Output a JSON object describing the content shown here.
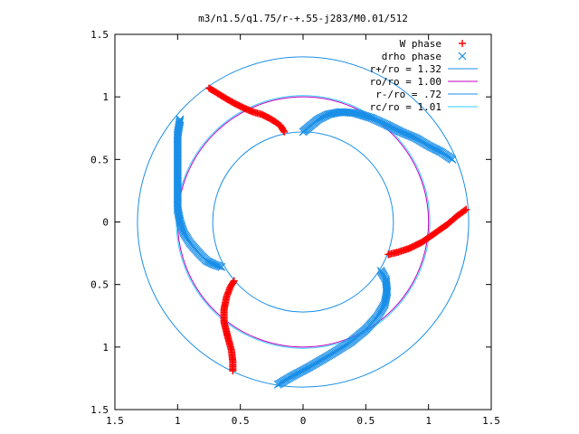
{
  "chart_data": {
    "type": "scatter",
    "title": "m3/n1.5/q1.75/r-+.55-j283/M0.01/512",
    "xlabel": "",
    "ylabel": "",
    "xlim": [
      -1.5,
      1.5
    ],
    "ylim": [
      -1.5,
      1.5
    ],
    "x_ticks": [
      "1.5",
      "1",
      "0.5",
      "0",
      "0.5",
      "1",
      "1.5"
    ],
    "y_ticks": [
      "1.5",
      "1",
      "0.5",
      "0",
      "0.5",
      "1",
      "1.5"
    ],
    "tick_values": [
      -1.5,
      -1,
      -0.5,
      0,
      0.5,
      1,
      1.5
    ],
    "grid": false,
    "legend_position": "top-right",
    "series": [
      {
        "name": "W phase",
        "marker": "+",
        "color": "#ff0000",
        "branches": [
          [
            [
              -0.75,
              1.07
            ],
            [
              -0.7,
              1.04
            ],
            [
              -0.62,
              0.99
            ],
            [
              -0.55,
              0.95
            ],
            [
              -0.47,
              0.91
            ],
            [
              -0.4,
              0.88
            ],
            [
              -0.33,
              0.86
            ],
            [
              -0.27,
              0.83
            ],
            [
              -0.22,
              0.8
            ],
            [
              -0.18,
              0.77
            ],
            [
              -0.15,
              0.72
            ]
          ],
          [
            [
              -0.55,
              -0.47
            ],
            [
              -0.58,
              -0.52
            ],
            [
              -0.61,
              -0.6
            ],
            [
              -0.63,
              -0.7
            ],
            [
              -0.63,
              -0.8
            ],
            [
              -0.6,
              -0.92
            ],
            [
              -0.57,
              -1.03
            ],
            [
              -0.56,
              -1.12
            ],
            [
              -0.56,
              -1.19
            ]
          ],
          [
            [
              0.68,
              -0.26
            ],
            [
              0.76,
              -0.24
            ],
            [
              0.85,
              -0.21
            ],
            [
              0.95,
              -0.16
            ],
            [
              1.05,
              -0.09
            ],
            [
              1.15,
              -0.02
            ],
            [
              1.23,
              0.05
            ],
            [
              1.3,
              0.1
            ]
          ]
        ]
      },
      {
        "name": "drho phase",
        "marker": "x",
        "color": "#1a8fe8",
        "branches": [
          [
            [
              -0.98,
              0.82
            ],
            [
              -1.0,
              0.7
            ],
            [
              -1.0,
              0.55
            ],
            [
              -1.0,
              0.4
            ],
            [
              -1.0,
              0.25
            ],
            [
              -1.0,
              0.1
            ],
            [
              -0.98,
              0.0
            ],
            [
              -0.95,
              -0.09
            ],
            [
              -0.9,
              -0.17
            ],
            [
              -0.83,
              -0.25
            ],
            [
              -0.77,
              -0.31
            ],
            [
              -0.71,
              -0.34
            ],
            [
              -0.65,
              -0.36
            ]
          ],
          [
            [
              0.0,
              0.72
            ],
            [
              0.06,
              0.77
            ],
            [
              0.12,
              0.82
            ],
            [
              0.2,
              0.86
            ],
            [
              0.3,
              0.88
            ],
            [
              0.42,
              0.87
            ],
            [
              0.55,
              0.83
            ],
            [
              0.66,
              0.78
            ],
            [
              0.78,
              0.72
            ],
            [
              0.9,
              0.67
            ],
            [
              1.0,
              0.61
            ],
            [
              1.1,
              0.56
            ],
            [
              1.19,
              0.5
            ]
          ],
          [
            [
              0.62,
              -0.39
            ],
            [
              0.66,
              -0.46
            ],
            [
              0.67,
              -0.56
            ],
            [
              0.65,
              -0.66
            ],
            [
              0.59,
              -0.76
            ],
            [
              0.5,
              -0.86
            ],
            [
              0.38,
              -0.96
            ],
            [
              0.22,
              -1.06
            ],
            [
              0.05,
              -1.16
            ],
            [
              -0.1,
              -1.24
            ],
            [
              -0.2,
              -1.3
            ]
          ]
        ]
      },
      {
        "name": "r+/ro = 1.32",
        "type": "circle",
        "radius": 1.32,
        "color": "#1a8fe8"
      },
      {
        "name": "ro/ro = 1.00",
        "type": "circle",
        "radius": 1.0,
        "color": "#c000c0"
      },
      {
        "name": "r-/ro = .72",
        "type": "circle",
        "radius": 0.72,
        "color": "#1a8fe8"
      },
      {
        "name": "rc/ro = 1.01",
        "type": "circle",
        "radius": 1.01,
        "color": "#33ccff"
      }
    ]
  }
}
